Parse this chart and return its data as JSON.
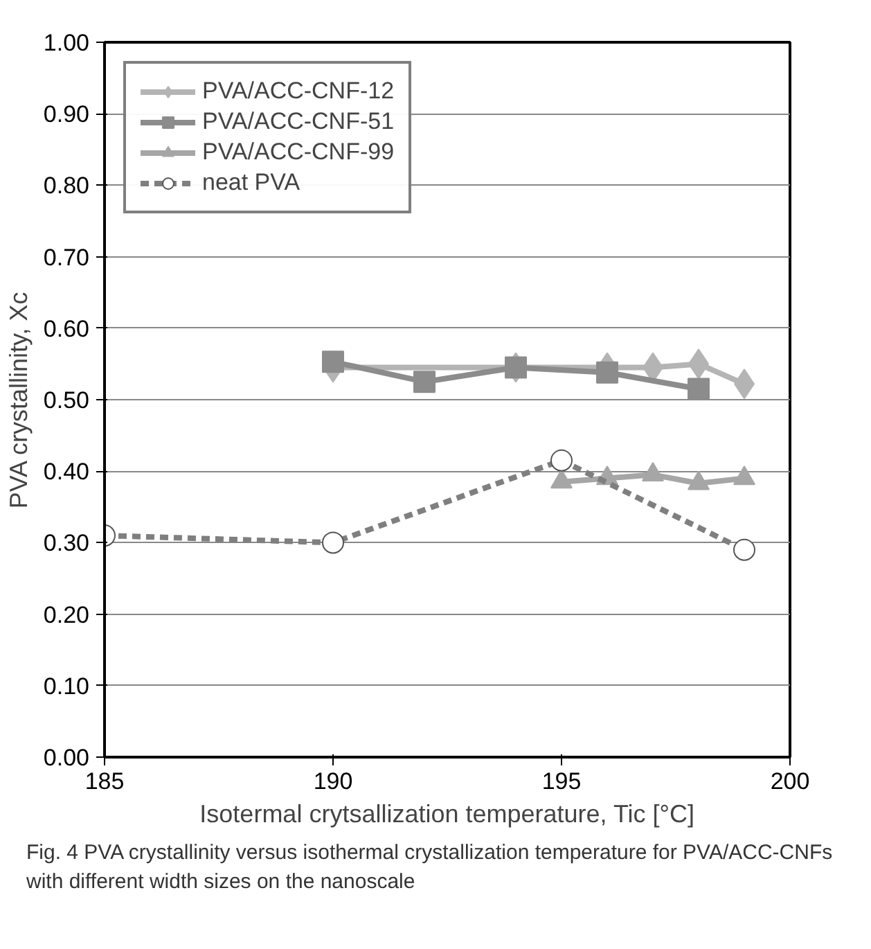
{
  "chart_data": {
    "type": "line",
    "xlabel": "Isotermal crytsallization temperature, Tic [°C]",
    "ylabel": "PVA crystallinity, Xc",
    "xlim": [
      185,
      200
    ],
    "xticks": [
      185,
      190,
      195,
      200
    ],
    "ylim": [
      0,
      1
    ],
    "yticks": [
      {
        "value": 0,
        "label": "0.00"
      },
      {
        "value": 0.1,
        "label": "0.10"
      },
      {
        "value": 0.2,
        "label": "0.20"
      },
      {
        "value": 0.3,
        "label": "0.30"
      },
      {
        "value": 0.4,
        "label": "0.40"
      },
      {
        "value": 0.5,
        "label": "0.50"
      },
      {
        "value": 0.6,
        "label": "0.60"
      },
      {
        "value": 0.7,
        "label": "0.70"
      },
      {
        "value": 0.8,
        "label": "0.80"
      },
      {
        "value": 0.9,
        "label": "0.90"
      },
      {
        "value": 1,
        "label": "1.00"
      }
    ],
    "grid": "y",
    "legend": "top left",
    "series": [
      {
        "name": "PVA/ACC-CNF-12",
        "color": "#b4b4b4",
        "marker": "diamond",
        "line_style": "solid",
        "x": [
          190,
          194,
          196,
          197,
          198,
          199
        ],
        "values": [
          0.545,
          0.545,
          0.545,
          0.545,
          0.55,
          0.522
        ]
      },
      {
        "name": "PVA/ACC-CNF-51",
        "color": "#8c8c8c",
        "marker": "square",
        "line_style": "solid",
        "x": [
          190,
          192,
          194,
          196,
          198
        ],
        "values": [
          0.553,
          0.525,
          0.545,
          0.538,
          0.515
        ]
      },
      {
        "name": "PVA/ACC-CNF-99",
        "color": "#a6a6a6",
        "marker": "triangle",
        "line_style": "solid",
        "x": [
          195,
          196,
          197,
          198,
          199
        ],
        "values": [
          0.385,
          0.39,
          0.395,
          0.383,
          0.39
        ]
      },
      {
        "name": "neat PVA",
        "color": "#7f7f7f",
        "marker": "circle",
        "line_style": "dashed",
        "x": [
          185,
          190,
          195,
          199
        ],
        "values": [
          0.31,
          0.3,
          0.415,
          0.29
        ]
      }
    ],
    "annotations": [
      "Fig. 4  PVA crystallinity versus isothermal crystallization temperature for PVA/ACC-CNFs with different width sizes on the nanoscale"
    ]
  }
}
